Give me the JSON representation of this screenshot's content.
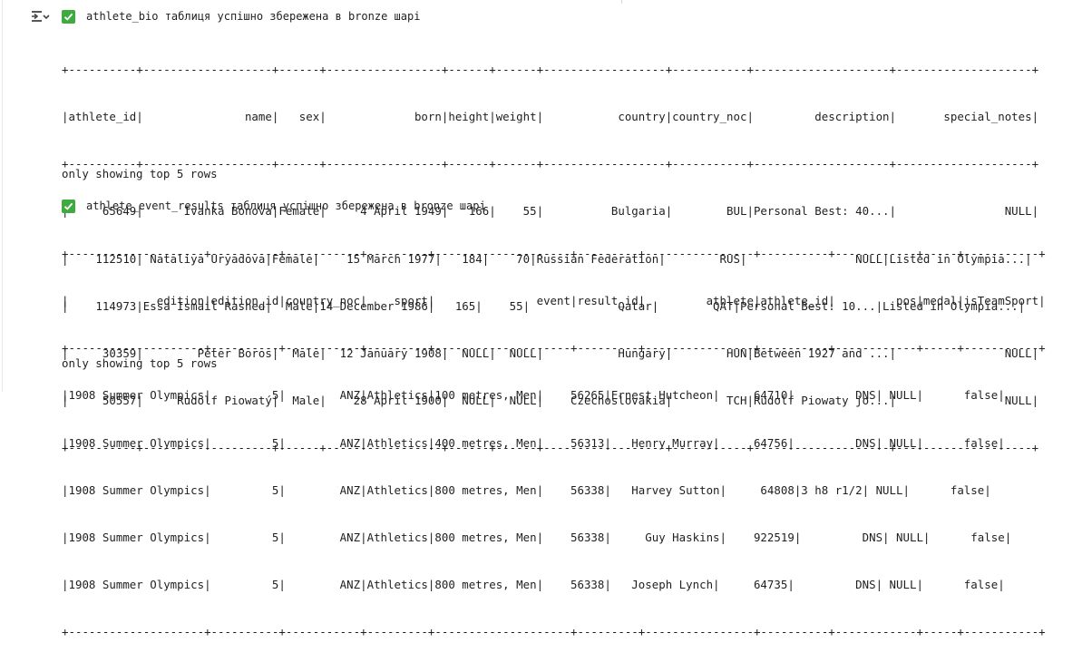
{
  "cell_toolbar": {
    "output_toggle_icon": "collapse-output-icon"
  },
  "outputs": [
    {
      "status_text": "athlete_bio таблиця успішно збережена в bronze шарі",
      "table": {
        "rows": [
          "+----------+-------------------+------+-----------------+------+------+------------------+-----------+--------------------+--------------------+",
          "|athlete_id|               name|   sex|             born|height|weight|           country|country_noc|         description|       special_notes|",
          "+----------+-------------------+------+-----------------+------+------+------------------+-----------+--------------------+--------------------+",
          "|     65649|      Ivanka Bonova|Female|     4 April 1949|   166|    55|          Bulgaria|        BUL|Personal Best: 40...|                NULL|",
          "|    112510| Nataliya Uryadova|Female|    15 March 1977|   184|    70|Russian Federation|        RUS|                NULL|Listed in Olympia...|",
          "|    114973|Essa Ismail Rashed|  Male|14 December 1986|   165|    55|             Qatar|        QAT|Personal Best: 10...|Listed in Olympia...|",
          "|     30359|        Péter Boros|  Male|  12 January 1908|  NULL|  NULL|           Hungary|        HUN|Between 1927 and ...|                NULL|",
          "|     50557|     Rudolf Piowatý|  Male|    28 April 1900|  NULL|  NULL|    Czechoslovakia|        TCH|Rudolf Piowaty jo...|                NULL|",
          "+----------+-------------------+------+-----------------+------+------+------------------+-----------+--------------------+--------------------+"
        ]
      },
      "footer": "only showing top 5 rows"
    },
    {
      "status_text": "athlete_event_results таблиця успішно збережена в bronze шарі",
      "table": {
        "rows": [
          "+--------------------+----------+-----------+---------+--------------------+---------+----------------+----------+------------+-----+-----------+",
          "|             edition|edition_id|country_noc|    sport|               event|result_id|         athlete|athlete_id|         pos|medal|isTeamSport|",
          "+--------------------+----------+-----------+---------+--------------------+---------+----------------+----------+------------+-----+-----------+",
          "|1908 Summer Olympics|         5|        ANZ|Athletics|100 metres, Men|    56265|Ernest Hutcheon|     64710|         DNS| NULL|      false|",
          "|1908 Summer Olympics|         5|        ANZ|Athletics|400 metres, Men|    56313|   Henry Murray|     64756|         DNS| NULL|      false|",
          "|1908 Summer Olympics|         5|        ANZ|Athletics|800 metres, Men|    56338|   Harvey Sutton|     64808|3 h8 r1/2| NULL|      false|",
          "|1908 Summer Olympics|         5|        ANZ|Athletics|800 metres, Men|    56338|     Guy Haskins|    922519|         DNS| NULL|      false|",
          "|1908 Summer Olympics|         5|        ANZ|Athletics|800 metres, Men|    56338|   Joseph Lynch|     64735|         DNS| NULL|      false|",
          "+--------------------+----------+-----------+---------+--------------------+---------+----------------+----------+------------+-----+-----------+"
        ]
      },
      "footer": "only showing top 5 rows"
    }
  ]
}
